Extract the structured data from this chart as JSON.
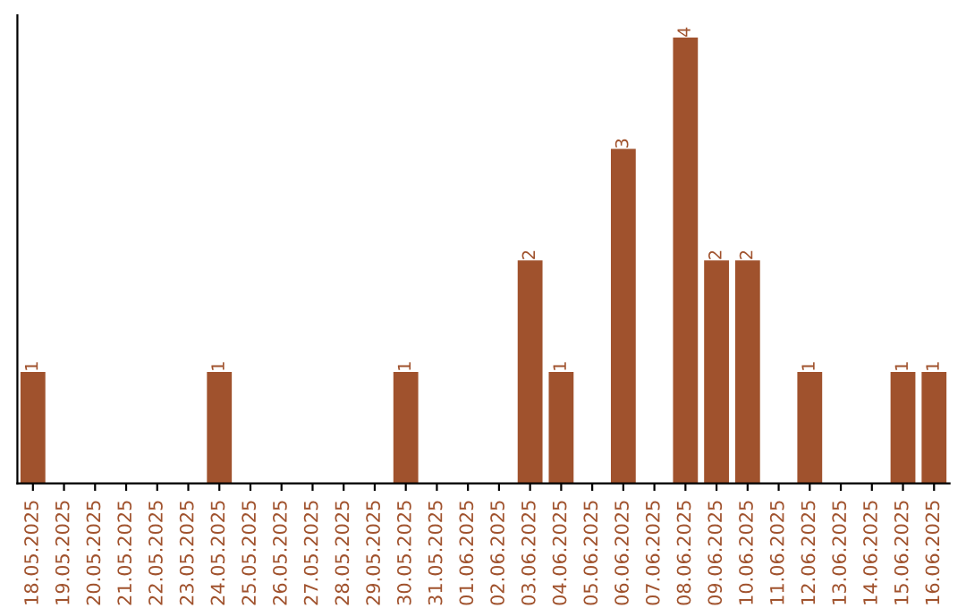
{
  "chart_data": {
    "type": "bar",
    "categories": [
      "18.05.2025",
      "19.05.2025",
      "20.05.2025",
      "21.05.2025",
      "22.05.2025",
      "23.05.2025",
      "24.05.2025",
      "25.05.2025",
      "26.05.2025",
      "27.05.2025",
      "28.05.2025",
      "29.05.2025",
      "30.05.2025",
      "31.05.2025",
      "01.06.2025",
      "02.06.2025",
      "03.06.2025",
      "04.06.2025",
      "05.06.2025",
      "06.06.2025",
      "07.06.2025",
      "08.06.2025",
      "09.06.2025",
      "10.06.2025",
      "11.06.2025",
      "12.06.2025",
      "13.06.2025",
      "14.06.2025",
      "15.06.2025",
      "16.06.2025"
    ],
    "values": [
      1,
      0,
      0,
      0,
      0,
      0,
      1,
      0,
      0,
      0,
      0,
      0,
      1,
      0,
      0,
      0,
      2,
      1,
      0,
      3,
      0,
      4,
      2,
      2,
      0,
      1,
      0,
      0,
      1,
      1
    ],
    "value_labels": [
      "1",
      null,
      null,
      null,
      null,
      null,
      "1",
      null,
      null,
      null,
      null,
      null,
      "1",
      null,
      null,
      null,
      "2",
      "1",
      null,
      "3",
      null,
      "4",
      "2",
      "2",
      null,
      "1",
      null,
      null,
      "1",
      "1"
    ],
    "color": "#a0522d",
    "tick_labels": "x",
    "grid": false,
    "legend": false
  }
}
